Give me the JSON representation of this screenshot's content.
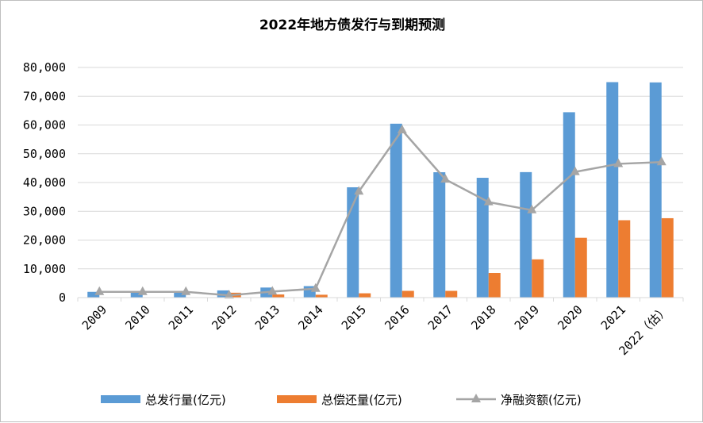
{
  "chart_data": {
    "type": "bar",
    "title": "2022年地方债发行与到期预测",
    "xlabel": "",
    "ylabel": "",
    "categories": [
      "2009",
      "2010",
      "2011",
      "2012",
      "2013",
      "2014",
      "2015",
      "2016",
      "2017",
      "2018",
      "2019",
      "2020",
      "2021",
      "2022（估）"
    ],
    "ylim": [
      0,
      80000
    ],
    "yticks": [
      0,
      10000,
      20000,
      30000,
      40000,
      50000,
      60000,
      70000,
      80000
    ],
    "ytick_labels": [
      "0",
      "10,000",
      "20,000",
      "30,000",
      "40,000",
      "50,000",
      "60,000",
      "70,000",
      "80,000"
    ],
    "grid": "horizontal",
    "legend_position": "bottom",
    "series": [
      {
        "name": "总发行量(亿元)",
        "type": "bar",
        "color": "#5b9bd5",
        "values": [
          2000,
          2000,
          2000,
          2500,
          3500,
          4000,
          38350,
          60450,
          43580,
          41650,
          43620,
          64440,
          74900,
          74800
        ]
      },
      {
        "name": "总偿还量(亿元)",
        "type": "bar",
        "color": "#ed7d31",
        "values": [
          0,
          0,
          0,
          1700,
          1100,
          1000,
          1500,
          2350,
          2350,
          8550,
          13300,
          20780,
          26900,
          27600
        ]
      },
      {
        "name": "净融资额(亿元)",
        "type": "line",
        "color": "#a5a5a5",
        "marker": "triangle",
        "values": [
          2000,
          2000,
          2000,
          800,
          2100,
          3100,
          36900,
          58200,
          41100,
          33200,
          30400,
          43700,
          46500,
          47100
        ]
      }
    ]
  }
}
